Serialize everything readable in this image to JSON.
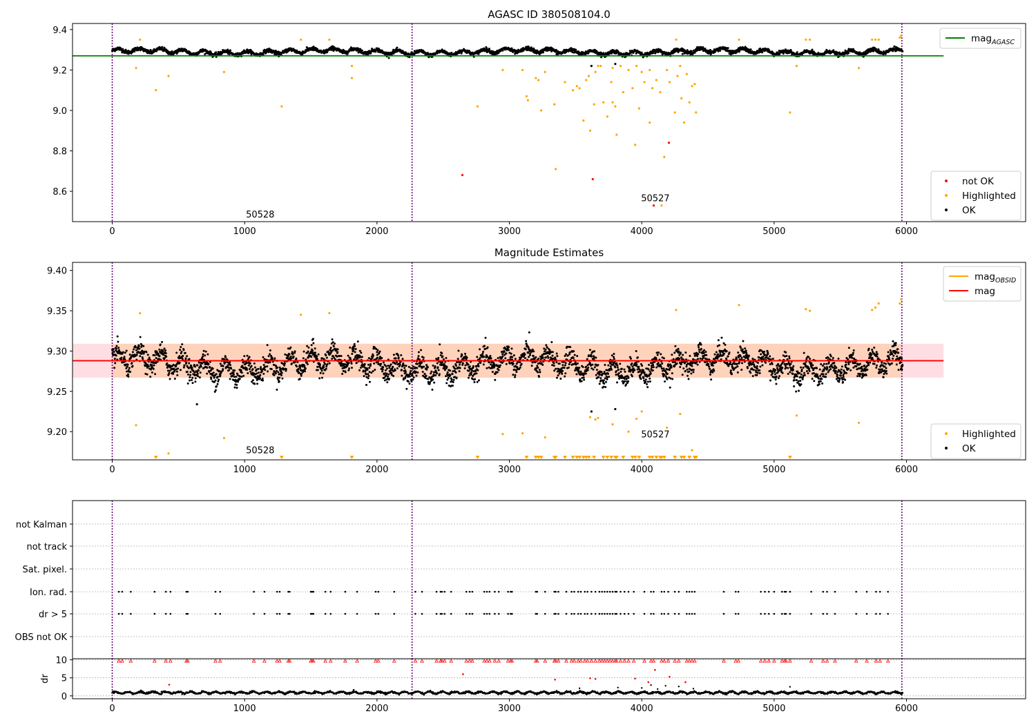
{
  "chart_data": [
    {
      "type": "scatter",
      "title": "AGASC ID 380508104.0",
      "xlim": [
        -300,
        6900
      ],
      "ylim": [
        8.45,
        9.43
      ],
      "x_ticks": [
        0,
        1000,
        2000,
        3000,
        4000,
        5000,
        6000
      ],
      "y_ticks": [
        8.6,
        8.8,
        9.0,
        9.2,
        9.4
      ],
      "y_tick_decimals": 1,
      "obs_boundaries": [
        0,
        2265,
        5965
      ],
      "annotations": [
        {
          "text": "50528",
          "x": 1010,
          "y": 8.47
        },
        {
          "text": "50527",
          "x": 3995,
          "y": 8.55
        }
      ],
      "reference_lines": [
        {
          "name": "mag",
          "sub": "AGASC",
          "y": 9.27,
          "x_range": [
            -300,
            6280
          ],
          "color": "#008000"
        }
      ],
      "ok_band": {
        "center": 9.29,
        "amplitude": 0.022,
        "periodA": 163,
        "periodB": 1470,
        "sigma": 0.008,
        "x_range": [
          0,
          5970
        ]
      },
      "series": [
        {
          "name": "not OK",
          "color": "#ff0000",
          "points": [
            [
              2645,
              8.68
            ],
            [
              3630,
              8.66
            ],
            [
              4205,
              8.84
            ],
            [
              4090,
              8.53
            ]
          ]
        },
        {
          "name": "Highlighted",
          "color": "#ffa500",
          "points": [
            [
              180,
              9.21
            ],
            [
              330,
              9.1
            ],
            [
              425,
              9.17
            ],
            [
              845,
              9.19
            ],
            [
              1280,
              9.02
            ],
            [
              1810,
              9.16
            ],
            [
              1810,
              9.22
            ],
            [
              2760,
              9.02
            ],
            [
              2950,
              9.2
            ],
            [
              3100,
              9.2
            ],
            [
              3130,
              9.07
            ],
            [
              3140,
              9.05
            ],
            [
              3200,
              9.16
            ],
            [
              3220,
              9.15
            ],
            [
              3240,
              9.0
            ],
            [
              3270,
              9.19
            ],
            [
              3340,
              9.03
            ],
            [
              3350,
              8.71
            ],
            [
              3420,
              9.14
            ],
            [
              3480,
              9.1
            ],
            [
              3510,
              9.12
            ],
            [
              3530,
              9.11
            ],
            [
              3560,
              8.95
            ],
            [
              3580,
              9.15
            ],
            [
              3600,
              9.17
            ],
            [
              3610,
              8.9
            ],
            [
              3620,
              9.22
            ],
            [
              3640,
              9.03
            ],
            [
              3650,
              9.19
            ],
            [
              3670,
              9.22
            ],
            [
              3690,
              9.22
            ],
            [
              3710,
              9.04
            ],
            [
              3740,
              8.97
            ],
            [
              3770,
              9.14
            ],
            [
              3780,
              9.21
            ],
            [
              3780,
              9.04
            ],
            [
              3800,
              9.02
            ],
            [
              3810,
              8.88
            ],
            [
              3840,
              9.22
            ],
            [
              3860,
              9.09
            ],
            [
              3900,
              9.2
            ],
            [
              3930,
              9.11
            ],
            [
              3950,
              8.83
            ],
            [
              3960,
              9.22
            ],
            [
              3980,
              9.01
            ],
            [
              4000,
              9.19
            ],
            [
              4020,
              9.14
            ],
            [
              4060,
              8.94
            ],
            [
              4060,
              9.2
            ],
            [
              4080,
              9.11
            ],
            [
              4110,
              9.15
            ],
            [
              4140,
              9.09
            ],
            [
              4150,
              8.53
            ],
            [
              4170,
              8.77
            ],
            [
              4190,
              9.2
            ],
            [
              4210,
              9.14
            ],
            [
              4250,
              8.99
            ],
            [
              4270,
              9.17
            ],
            [
              4290,
              9.22
            ],
            [
              4300,
              9.06
            ],
            [
              4320,
              8.94
            ],
            [
              4340,
              9.18
            ],
            [
              4360,
              9.04
            ],
            [
              4380,
              9.12
            ],
            [
              4400,
              9.13
            ],
            [
              4410,
              8.99
            ],
            [
              5120,
              8.99
            ],
            [
              5170,
              9.22
            ],
            [
              5640,
              9.21
            ],
            [
              210,
              9.35
            ],
            [
              1425,
              9.35
            ],
            [
              1640,
              9.35
            ],
            [
              4260,
              9.35
            ],
            [
              4735,
              9.35
            ],
            [
              5240,
              9.35
            ],
            [
              5270,
              9.35
            ],
            [
              5740,
              9.35
            ],
            [
              5765,
              9.35
            ],
            [
              5790,
              9.35
            ],
            [
              5950,
              9.36
            ],
            [
              5960,
              9.37
            ]
          ]
        },
        {
          "name": "OK",
          "color": "#000000",
          "points": [
            [
              3620,
              9.22
            ],
            [
              3800,
              9.23
            ]
          ]
        }
      ],
      "legend": [
        {
          "label": "not OK",
          "kind": "dot",
          "color": "#ff0000"
        },
        {
          "label": "Highlighted",
          "kind": "dot",
          "color": "#ffa500"
        },
        {
          "label": "OK",
          "kind": "dot",
          "color": "#000000"
        }
      ],
      "legend_top": [
        {
          "label": "mag",
          "sub": "AGASC",
          "kind": "line",
          "color": "#008000"
        }
      ]
    },
    {
      "type": "scatter",
      "title": "Magnitude Estimates",
      "xlim": [
        -300,
        6900
      ],
      "ylim": [
        9.165,
        9.41
      ],
      "x_ticks": [
        0,
        1000,
        2000,
        3000,
        4000,
        5000,
        6000
      ],
      "y_ticks": [
        9.2,
        9.25,
        9.3,
        9.35,
        9.4
      ],
      "y_tick_decimals": 2,
      "obs_boundaries": [
        0,
        2265,
        5965
      ],
      "annotations": [
        {
          "text": "50528",
          "x": 1010,
          "y": 9.173
        },
        {
          "text": "50527",
          "x": 3995,
          "y": 9.193
        }
      ],
      "bands": [
        {
          "y0": 9.267,
          "y1": 9.309,
          "x_range": [
            -300,
            6280
          ],
          "color": "#ffb6c1",
          "opacity": 0.45
        },
        {
          "y0": 9.267,
          "y1": 9.309,
          "x_range": [
            0,
            5965
          ],
          "color": "#ffc89a",
          "opacity": 0.55
        }
      ],
      "reference_lines": [
        {
          "name": "mag",
          "sub": "OBSID",
          "y": 9.288,
          "x_range": [
            0,
            5965
          ],
          "color": "#ffa500"
        },
        {
          "name": "mag",
          "y": 9.288,
          "x_range": [
            -300,
            6280
          ],
          "color": "#ff0000"
        }
      ],
      "ok_band": {
        "center": 9.283,
        "amplitude": 0.022,
        "periodA": 163,
        "periodB": 1470,
        "sigma": 0.011,
        "x_range": [
          0,
          5970
        ]
      },
      "series": [
        {
          "name": "Highlighted",
          "color": "#ffa500",
          "points": [
            [
              180,
              9.208
            ],
            [
              425,
              9.173
            ],
            [
              845,
              9.192
            ],
            [
              2950,
              9.197
            ],
            [
              3100,
              9.198
            ],
            [
              3270,
              9.193
            ],
            [
              3610,
              9.218
            ],
            [
              3650,
              9.215
            ],
            [
              3670,
              9.217
            ],
            [
              3780,
              9.209
            ],
            [
              3900,
              9.2
            ],
            [
              3960,
              9.216
            ],
            [
              4000,
              9.225
            ],
            [
              4190,
              9.205
            ],
            [
              4290,
              9.222
            ],
            [
              4380,
              9.177
            ],
            [
              5170,
              9.22
            ],
            [
              5640,
              9.211
            ],
            [
              210,
              9.347
            ],
            [
              1425,
              9.345
            ],
            [
              1640,
              9.347
            ],
            [
              4260,
              9.351
            ],
            [
              4735,
              9.357
            ],
            [
              5240,
              9.352
            ],
            [
              5270,
              9.35
            ],
            [
              5740,
              9.351
            ],
            [
              5765,
              9.354
            ],
            [
              5790,
              9.359
            ],
            [
              5950,
              9.359
            ],
            [
              5960,
              9.364
            ]
          ]
        },
        {
          "name": "Highlighted (off-scale lower limits)",
          "color": "#ffa500",
          "marker": "triangle-down",
          "x": [
            330,
            1280,
            1810,
            2760,
            3130,
            3200,
            3220,
            3240,
            3340,
            3350,
            3420,
            3480,
            3510,
            3530,
            3560,
            3580,
            3600,
            3640,
            3710,
            3740,
            3770,
            3800,
            3810,
            3860,
            3930,
            3950,
            3980,
            4060,
            4080,
            4110,
            4140,
            4150,
            4170,
            4250,
            4300,
            4320,
            4360,
            4400,
            4410,
            5120
          ]
        },
        {
          "name": "OK",
          "color": "#000000",
          "points": [
            [
              3620,
              9.225
            ],
            [
              3800,
              9.228
            ],
            [
              640,
              9.234
            ]
          ]
        }
      ],
      "legend": [
        {
          "label": "Highlighted",
          "kind": "dot",
          "color": "#ffa500"
        },
        {
          "label": "OK",
          "kind": "dot",
          "color": "#000000"
        }
      ],
      "legend_top": [
        {
          "label": "mag",
          "sub": "OBSID",
          "kind": "line",
          "color": "#ffa500"
        },
        {
          "label": "mag",
          "kind": "line",
          "color": "#ff0000"
        }
      ]
    },
    {
      "type": "scatter",
      "title": "",
      "xlim": [
        -300,
        6900
      ],
      "obs_boundaries": [
        0,
        2265,
        5965
      ],
      "flag_labels": [
        "not Kalman",
        "not track",
        "Sat. pixel.",
        "Ion. rad.",
        "dr > 5",
        "OBS not OK"
      ],
      "flag_x": [
        50,
        75,
        140,
        320,
        405,
        440,
        560,
        570,
        780,
        815,
        1070,
        1150,
        1245,
        1265,
        1330,
        1340,
        1500,
        1510,
        1520,
        1610,
        1650,
        1760,
        1850,
        1990,
        2010,
        2130,
        2290,
        2340,
        2450,
        2480,
        2490,
        2510,
        2560,
        2675,
        2700,
        2720,
        2810,
        2830,
        2850,
        2890,
        2920,
        2990,
        3010,
        3020,
        3200,
        3210,
        3270,
        3340,
        3350,
        3370,
        3430,
        3470,
        3490,
        3520,
        3540,
        3570,
        3590,
        3620,
        3650,
        3680,
        3700,
        3720,
        3740,
        3760,
        3780,
        3800,
        3810,
        3840,
        3870,
        3900,
        3940,
        4020,
        4070,
        4090,
        4150,
        4170,
        4200,
        4250,
        4280,
        4340,
        4360,
        4380,
        4400,
        4620,
        4710,
        4730,
        4900,
        4930,
        4960,
        5000,
        5060,
        5080,
        5090,
        5120,
        5280,
        5370,
        5400,
        5460,
        5620,
        5700,
        5770,
        5800,
        5860
      ],
      "dr_panel": {
        "ylim": [
          -0.8,
          10.3
        ],
        "y_ticks": [
          0,
          5,
          10
        ],
        "ylabel": "dr",
        "baseline": {
          "center": 0.9,
          "amplitude": 0.25,
          "period": 95,
          "sigma": 0.12,
          "x_range": [
            0,
            5970
          ]
        },
        "red_points": [
          [
            2650,
            6
          ],
          [
            3345,
            4.5
          ],
          [
            3610,
            4.9
          ],
          [
            3650,
            4.7
          ],
          [
            3950,
            4.8
          ],
          [
            4050,
            3.8
          ],
          [
            4100,
            7.2
          ],
          [
            4210,
            5.3
          ],
          [
            4330,
            3.8
          ],
          [
            430,
            3.1
          ]
        ],
        "black_points": [
          [
            4000,
            2.2
          ],
          [
            5120,
            2.5
          ],
          [
            3530,
            2.1
          ],
          [
            3820,
            2.3
          ],
          [
            4120,
            1.9
          ],
          [
            4180,
            2.8
          ],
          [
            4280,
            2.6
          ],
          [
            4390,
            2.0
          ],
          [
            4070,
            3.0
          ]
        ],
        "red_marker": "triangle-up",
        "red_marker_y": 9.7
      }
    }
  ]
}
